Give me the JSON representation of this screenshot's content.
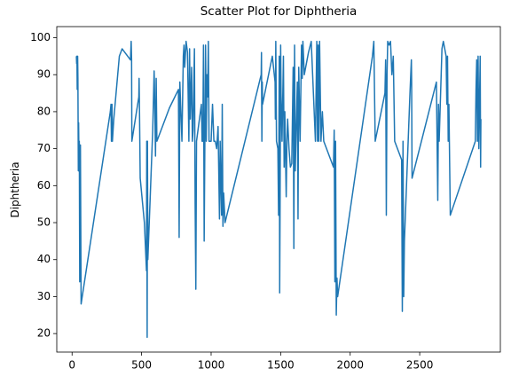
{
  "chart_data": {
    "type": "line",
    "title": "Scatter Plot for Diphtheria",
    "ylabel": "Diphtheria",
    "color": "#1f77b4",
    "x": [
      31,
      33,
      35,
      37,
      40,
      42,
      45,
      47,
      50,
      52,
      55,
      60,
      65,
      275,
      280,
      283,
      287,
      290,
      300,
      340,
      360,
      420,
      425,
      428,
      430,
      480,
      482,
      485,
      490,
      520,
      535,
      537,
      540,
      542,
      545,
      560,
      580,
      590,
      592,
      600,
      605,
      610,
      700,
      765,
      770,
      775,
      790,
      800,
      805,
      810,
      820,
      830,
      840,
      845,
      850,
      860,
      865,
      870,
      880,
      885,
      890,
      895,
      930,
      935,
      940,
      945,
      950,
      955,
      960,
      965,
      970,
      975,
      980,
      985,
      990,
      1000,
      1010,
      1020,
      1030,
      1040,
      1050,
      1060,
      1065,
      1070,
      1075,
      1080,
      1085,
      1090,
      1100,
      1360,
      1362,
      1365,
      1368,
      1370,
      1440,
      1460,
      1462,
      1465,
      1470,
      1480,
      1485,
      1490,
      1493,
      1496,
      1500,
      1503,
      1510,
      1520,
      1525,
      1530,
      1540,
      1545,
      1550,
      1560,
      1570,
      1580,
      1590,
      1595,
      1600,
      1605,
      1610,
      1620,
      1625,
      1630,
      1640,
      1650,
      1655,
      1660,
      1670,
      1700,
      1720,
      1750,
      1760,
      1765,
      1770,
      1775,
      1780,
      1790,
      1800,
      1810,
      1880,
      1885,
      1890,
      1895,
      1900,
      1905,
      1910,
      2160,
      2170,
      2180,
      2250,
      2255,
      2260,
      2265,
      2270,
      2280,
      2290,
      2300,
      2310,
      2320,
      2370,
      2375,
      2380,
      2385,
      2390,
      2430,
      2440,
      2442,
      2445,
      2620,
      2630,
      2635,
      2640,
      2660,
      2670,
      2690,
      2695,
      2700,
      2705,
      2710,
      2720,
      2900,
      2905,
      2910,
      2915,
      2920,
      2925,
      2935,
      2938,
      2940
    ],
    "values": [
      95,
      93,
      95,
      86,
      95,
      89,
      64,
      77,
      65,
      72,
      34,
      71,
      28,
      80,
      82,
      72,
      82,
      72,
      78,
      95,
      97,
      94,
      99,
      94,
      72,
      84,
      89,
      80,
      62,
      50,
      37,
      72,
      19,
      72,
      40,
      55,
      75,
      91,
      88,
      68,
      89,
      72,
      81,
      86,
      46,
      88,
      72,
      95,
      98,
      92,
      99,
      96,
      72,
      97,
      78,
      92,
      72,
      75,
      97,
      55,
      32,
      72,
      82,
      72,
      72,
      98,
      45,
      72,
      98,
      72,
      90,
      84,
      99,
      72,
      72,
      72,
      82,
      72,
      72,
      70,
      76,
      51,
      72,
      60,
      52,
      82,
      49,
      58,
      50,
      90,
      96,
      72,
      88,
      82,
      95,
      88,
      78,
      99,
      72,
      70,
      52,
      95,
      31,
      55,
      98,
      85,
      72,
      95,
      65,
      80,
      57,
      72,
      78,
      70,
      65,
      66,
      92,
      43,
      98,
      64,
      72,
      88,
      51,
      92,
      72,
      98,
      89,
      99,
      90,
      96,
      99,
      72,
      99,
      72,
      98,
      72,
      99,
      72,
      80,
      72,
      65,
      75,
      34,
      72,
      25,
      35,
      30,
      95,
      99,
      72,
      85,
      94,
      52,
      90,
      99,
      98,
      99,
      90,
      95,
      72,
      67,
      26,
      72,
      30,
      45,
      85,
      94,
      88,
      62,
      88,
      56,
      82,
      72,
      97,
      99,
      95,
      82,
      95,
      72,
      82,
      52,
      72,
      86,
      94,
      72,
      95,
      70,
      95,
      65,
      78
    ],
    "xlim": [
      -110,
      3080
    ],
    "ylim": [
      15,
      103
    ],
    "xticks": [
      0,
      500,
      1000,
      1500,
      2000,
      2500
    ],
    "yticks": [
      20,
      30,
      40,
      50,
      60,
      70,
      80,
      90,
      100
    ]
  }
}
